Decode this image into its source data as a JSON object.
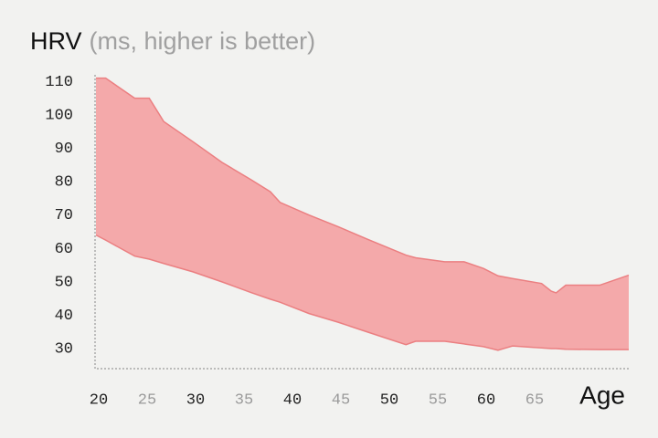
{
  "chart_data": {
    "type": "range-area",
    "title": "HRV",
    "subtitle": "(ms, higher is better)",
    "x_label": "Age",
    "x": [
      20,
      21,
      24,
      25.5,
      27,
      30,
      33,
      36,
      38,
      39,
      42,
      45,
      48,
      52,
      53,
      56,
      58,
      60,
      61.5,
      63,
      66,
      67,
      67.5,
      68.5,
      72,
      75
    ],
    "upper": [
      111,
      111,
      105,
      105,
      98,
      92,
      85.8,
      80.6,
      77,
      73.8,
      70,
      66.5,
      62.8,
      58,
      57.2,
      56,
      56,
      54,
      51.8,
      51,
      49.5,
      47.2,
      46.7,
      49,
      49,
      52
    ],
    "lower": [
      64,
      62.5,
      57.7,
      56.8,
      55.5,
      53,
      50,
      46.8,
      44.8,
      43.9,
      40.5,
      37.9,
      35,
      31.2,
      32.2,
      32.2,
      31.4,
      30.6,
      29.5,
      30.8,
      30.2,
      30,
      30,
      29.8,
      29.7,
      29.7
    ],
    "color": "#f4a9aa",
    "line_color": "#eb7f81",
    "xlim": [
      20,
      75
    ],
    "ylim": [
      24,
      112
    ],
    "xticks": [
      20,
      25,
      30,
      35,
      40,
      45,
      50,
      55,
      60,
      65
    ],
    "yticks": [
      30,
      40,
      50,
      60,
      70,
      80,
      90,
      100,
      110
    ]
  }
}
